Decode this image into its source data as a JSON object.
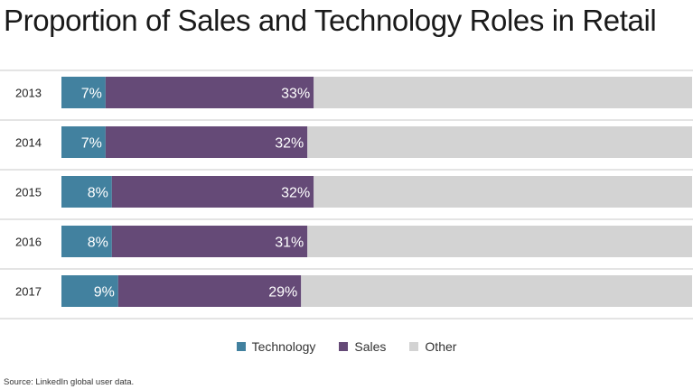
{
  "chart_data": {
    "type": "bar",
    "orientation": "horizontal",
    "stacked": true,
    "title": "Proportion of Sales and Technology Roles in Retail",
    "categories": [
      "2013",
      "2014",
      "2015",
      "2016",
      "2017"
    ],
    "series": [
      {
        "name": "Technology",
        "values": [
          7,
          7,
          8,
          8,
          9
        ],
        "labels": [
          "7%",
          "7%",
          "8%",
          "8%",
          "9%"
        ],
        "color": "#42819f"
      },
      {
        "name": "Sales",
        "values": [
          33,
          32,
          32,
          31,
          29
        ],
        "labels": [
          "33%",
          "32%",
          "32%",
          "31%",
          "29%"
        ],
        "color": "#654a77"
      },
      {
        "name": "Other",
        "values": [
          60,
          61,
          60,
          61,
          62
        ],
        "color": "#d3d3d3"
      }
    ],
    "xlim": [
      0,
      100
    ],
    "grid": false,
    "legend": "bottom-center",
    "source": "Source: LinkedIn global user data."
  }
}
